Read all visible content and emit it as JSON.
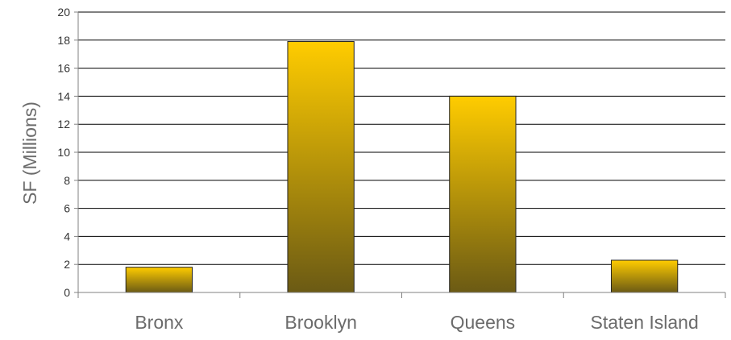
{
  "chart_data": {
    "type": "bar",
    "title": "",
    "ylabel": "SF (Millions)",
    "xlabel": "",
    "categories": [
      "Bronx",
      "Brooklyn",
      "Queens",
      "Staten Island"
    ],
    "values": [
      1.8,
      17.9,
      14.0,
      2.3
    ],
    "ylim": [
      0,
      20
    ],
    "yticks": [
      0,
      2,
      4,
      6,
      8,
      10,
      12,
      14,
      16,
      18,
      20
    ],
    "grid": true,
    "legend": "none",
    "colors": {
      "bar_top": "#ffcc00",
      "bar_bottom": "#6b5a14",
      "bar_stroke": "#222222",
      "grid": "#000000",
      "axis": "#808080"
    }
  }
}
